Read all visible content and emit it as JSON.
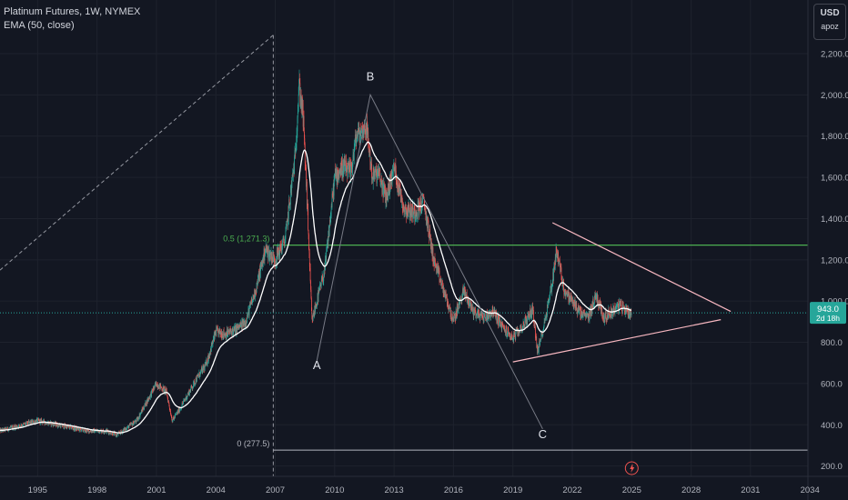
{
  "header": {
    "symbol_line": "Platinum Futures, 1W, NYMEX",
    "indicator_line": "EMA (50, close)"
  },
  "currency_box": {
    "currency": "USD",
    "username": "apoz"
  },
  "price_tag": {
    "value": "943.0",
    "countdown": "2d 18h"
  },
  "colors": {
    "background": "#131722",
    "bull": "#26a69a",
    "bear": "#ef5350",
    "ema": "#ffffff",
    "fib_line": "#4caf50",
    "triangle": "#f7b7c0",
    "wave_line": "#787b86",
    "price_tag": "#26a69a"
  },
  "annotations": {
    "fib_half": "0.5 (1,271.3)",
    "fib_zero": "0 (277.5)",
    "wave_labels": [
      "A",
      "B",
      "C"
    ]
  },
  "chart_data": {
    "type": "candlestick",
    "title": "Platinum Futures, 1W, NYMEX",
    "indicator": "EMA (50, close)",
    "xlim": [
      1993.1,
      2033.9
    ],
    "ylim": [
      150,
      2460
    ],
    "x_ticks": [
      "1995",
      "1998",
      "2001",
      "2004",
      "2007",
      "2010",
      "2013",
      "2016",
      "2019",
      "2022",
      "2025",
      "2028",
      "2031",
      "2034"
    ],
    "y_ticks": [
      "200.0",
      "400.0",
      "600.0",
      "800.0",
      "1,000.0",
      "1,200.0",
      "1,400.0",
      "1,600.0",
      "1,800.0",
      "2,000.0",
      "2,200.0"
    ],
    "price_path": [
      [
        1993.1,
        370
      ],
      [
        1995.0,
        420
      ],
      [
        1996.0,
        400
      ],
      [
        1997.5,
        370
      ],
      [
        1998.5,
        370
      ],
      [
        1999.0,
        350
      ],
      [
        2000.0,
        420
      ],
      [
        2001.0,
        600
      ],
      [
        2001.5,
        560
      ],
      [
        2001.8,
        420
      ],
      [
        2002.2,
        480
      ],
      [
        2003.0,
        620
      ],
      [
        2003.5,
        690
      ],
      [
        2004.0,
        850
      ],
      [
        2004.5,
        840
      ],
      [
        2005.0,
        860
      ],
      [
        2005.5,
        900
      ],
      [
        2006.0,
        1050
      ],
      [
        2006.5,
        1250
      ],
      [
        2007.0,
        1200
      ],
      [
        2007.5,
        1300
      ],
      [
        2008.0,
        1700
      ],
      [
        2008.2,
        2050
      ],
      [
        2008.4,
        1900
      ],
      [
        2008.6,
        1500
      ],
      [
        2008.85,
        900
      ],
      [
        2009.0,
        960
      ],
      [
        2009.5,
        1150
      ],
      [
        2010.0,
        1600
      ],
      [
        2010.4,
        1650
      ],
      [
        2010.8,
        1620
      ],
      [
        2011.1,
        1800
      ],
      [
        2011.6,
        1850
      ],
      [
        2011.9,
        1600
      ],
      [
        2012.2,
        1620
      ],
      [
        2012.6,
        1500
      ],
      [
        2013.0,
        1650
      ],
      [
        2013.5,
        1450
      ],
      [
        2014.0,
        1430
      ],
      [
        2014.5,
        1480
      ],
      [
        2015.0,
        1200
      ],
      [
        2015.5,
        1050
      ],
      [
        2016.0,
        900
      ],
      [
        2016.5,
        1050
      ],
      [
        2017.0,
        950
      ],
      [
        2017.5,
        920
      ],
      [
        2018.0,
        950
      ],
      [
        2018.5,
        870
      ],
      [
        2019.0,
        820
      ],
      [
        2019.5,
        880
      ],
      [
        2020.0,
        960
      ],
      [
        2020.25,
        750
      ],
      [
        2020.6,
        900
      ],
      [
        2021.0,
        1100
      ],
      [
        2021.2,
        1250
      ],
      [
        2021.6,
        1050
      ],
      [
        2022.0,
        1000
      ],
      [
        2022.4,
        940
      ],
      [
        2022.8,
        920
      ],
      [
        2023.2,
        1030
      ],
      [
        2023.6,
        920
      ],
      [
        2024.0,
        950
      ],
      [
        2024.4,
        980
      ],
      [
        2024.8,
        950
      ],
      [
        2025.0,
        943
      ]
    ],
    "series": [
      {
        "name": "EMA (50, close)",
        "type": "line"
      }
    ],
    "horizontal_lines": [
      {
        "label": "0.5 (1,271.3)",
        "value": 1271.3
      },
      {
        "label": "0 (277.5)",
        "value": 277.5
      },
      {
        "label": "943.0",
        "value": 943
      }
    ],
    "fib_trend_line": {
      "from": [
        1993.1,
        1150
      ],
      "to": [
        2006.9,
        2290
      ]
    },
    "wave_lines": [
      [
        [
          2009.1,
          710
        ],
        [
          2011.8,
          2000
        ],
        [
          2020.5,
          380
        ]
      ]
    ],
    "wave_labels": [
      {
        "label": "A",
        "x": 2009.1,
        "y": 670
      },
      {
        "label": "B",
        "x": 2011.8,
        "y": 2070
      },
      {
        "label": "C",
        "x": 2020.5,
        "y": 335
      }
    ],
    "triangle": {
      "upper": [
        [
          2021.0,
          1380
        ],
        [
          2030.0,
          950
        ]
      ],
      "lower": [
        [
          2019.0,
          705
        ],
        [
          2029.5,
          910
        ]
      ]
    },
    "last_price": 943.0
  }
}
